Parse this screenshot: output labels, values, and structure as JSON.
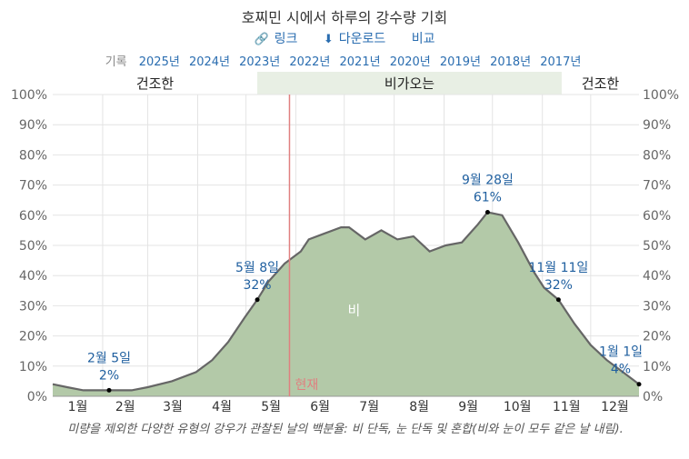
{
  "header": {
    "title": "호찌민 시에서 하루의 강수량 기회",
    "link_label": "링크",
    "download_label": "다운로드",
    "compare_label": "비교",
    "link_icon": "link-icon",
    "download_icon": "download-icon",
    "records_label": "기록",
    "years": [
      "2025년",
      "2024년",
      "2023년",
      "2022년",
      "2021년",
      "2020년",
      "2019년",
      "2018년",
      "2017년"
    ]
  },
  "footnote": "미량을 제외한 다양한 유형의 강우가 관찰된 날의 백분율: 비 단독, 눈 단독 및 혼합(비와 눈이 모두 같은 날 내림).",
  "chart_data": {
    "type": "area",
    "title": "호찌민 시에서 하루의 강수량 기회",
    "x_unit": "day_of_year",
    "xlim": [
      1,
      365
    ],
    "ylim": [
      0,
      100
    ],
    "y_ticks": [
      "0%",
      "10%",
      "20%",
      "30%",
      "40%",
      "50%",
      "60%",
      "70%",
      "80%",
      "90%",
      "100%"
    ],
    "month_labels": [
      "1월",
      "2월",
      "3월",
      "4월",
      "5월",
      "6월",
      "7월",
      "8월",
      "9월",
      "10월",
      "11월",
      "12월"
    ],
    "grid": true,
    "seasons": [
      {
        "label": "건조한",
        "start": 1,
        "end": 128,
        "color": "#ffffff"
      },
      {
        "label": "비가오는",
        "start": 128,
        "end": 317,
        "color": "#e8efe4"
      },
      {
        "label": "건조한",
        "start": 317,
        "end": 365,
        "color": "#ffffff"
      }
    ],
    "series": [
      {
        "name": "비",
        "color": "#b3c9a8",
        "line_color": "#666666",
        "points": [
          [
            1,
            4
          ],
          [
            10,
            3
          ],
          [
            20,
            2
          ],
          [
            36,
            2
          ],
          [
            50,
            2
          ],
          [
            60,
            3
          ],
          [
            75,
            5
          ],
          [
            90,
            8
          ],
          [
            100,
            12
          ],
          [
            110,
            18
          ],
          [
            120,
            26
          ],
          [
            128,
            32
          ],
          [
            135,
            38
          ],
          [
            145,
            44
          ],
          [
            155,
            48
          ],
          [
            160,
            52
          ],
          [
            170,
            54
          ],
          [
            180,
            56
          ],
          [
            185,
            56
          ],
          [
            195,
            52
          ],
          [
            205,
            55
          ],
          [
            215,
            52
          ],
          [
            225,
            53
          ],
          [
            235,
            48
          ],
          [
            245,
            50
          ],
          [
            255,
            51
          ],
          [
            265,
            57
          ],
          [
            271,
            61
          ],
          [
            280,
            60
          ],
          [
            290,
            51
          ],
          [
            300,
            41
          ],
          [
            306,
            36
          ],
          [
            315,
            32
          ],
          [
            325,
            24
          ],
          [
            335,
            17
          ],
          [
            345,
            12
          ],
          [
            355,
            8
          ],
          [
            365,
            4
          ]
        ]
      }
    ],
    "annotations": [
      {
        "day": 36,
        "date": "2월 5일",
        "value": "2%",
        "y": 2
      },
      {
        "day": 128,
        "date": "5월 8일",
        "value": "32%",
        "y": 32
      },
      {
        "day": 271,
        "date": "9월 28일",
        "value": "61%",
        "y": 61
      },
      {
        "day": 315,
        "date": "11월 11일",
        "value": "32%",
        "y": 32
      },
      {
        "day": 365,
        "date": "1월 1일",
        "value": "4%",
        "y": 4
      }
    ],
    "now_marker": {
      "label": "현재",
      "day": 148,
      "color": "#e08080"
    }
  }
}
